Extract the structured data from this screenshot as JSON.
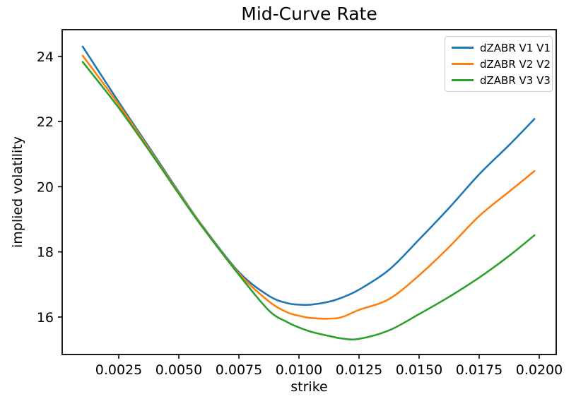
{
  "figure": {
    "background_color": "#ffffff",
    "frame_color": "#000000",
    "legend_border_color": "#cccccc"
  },
  "chart_data": {
    "type": "line",
    "title": "Mid-Curve Rate",
    "xlabel": "strike",
    "ylabel": "implied volatility",
    "xlim": [
      0.000147,
      0.020706
    ],
    "ylim": [
      14.85,
      24.82
    ],
    "grid": false,
    "legend_position": "upper right",
    "x_ticks": [
      0.0025,
      0.005,
      0.0075,
      0.01,
      0.0125,
      0.015,
      0.0175,
      0.02
    ],
    "x_tick_labels": [
      "0.0025",
      "0.0050",
      "0.0075",
      "0.0100",
      "0.0125",
      "0.0150",
      "0.0175",
      "0.0200"
    ],
    "y_ticks": [
      16,
      18,
      20,
      22,
      24
    ],
    "y_tick_labels": [
      "16",
      "18",
      "20",
      "22",
      "24"
    ],
    "x": [
      0.001,
      0.0025,
      0.004,
      0.005,
      0.006,
      0.0075,
      0.00875,
      0.0095,
      0.01,
      0.0105,
      0.01125,
      0.0118,
      0.0125,
      0.01375,
      0.015,
      0.01625,
      0.0175,
      0.01875,
      0.0198
    ],
    "series": [
      {
        "name": "dZABR V1 V1",
        "color": "#1f77b4",
        "values": [
          24.3,
          22.6,
          20.95,
          19.84,
          18.78,
          17.38,
          16.65,
          16.43,
          16.38,
          16.38,
          16.47,
          16.6,
          16.84,
          17.45,
          18.38,
          19.35,
          20.38,
          21.28,
          22.08
        ]
      },
      {
        "name": "dZABR V2 V2",
        "color": "#ff7f0e",
        "values": [
          24.02,
          22.52,
          20.9,
          19.81,
          18.76,
          17.34,
          16.48,
          16.15,
          16.04,
          15.97,
          15.95,
          16.0,
          16.22,
          16.55,
          17.28,
          18.15,
          19.1,
          19.85,
          20.48
        ]
      },
      {
        "name": "dZABR V3 V3",
        "color": "#2ca02c",
        "values": [
          23.83,
          22.42,
          20.86,
          19.78,
          18.74,
          17.3,
          16.2,
          15.85,
          15.68,
          15.55,
          15.42,
          15.34,
          15.33,
          15.59,
          16.09,
          16.62,
          17.21,
          17.88,
          18.51
        ]
      }
    ]
  }
}
